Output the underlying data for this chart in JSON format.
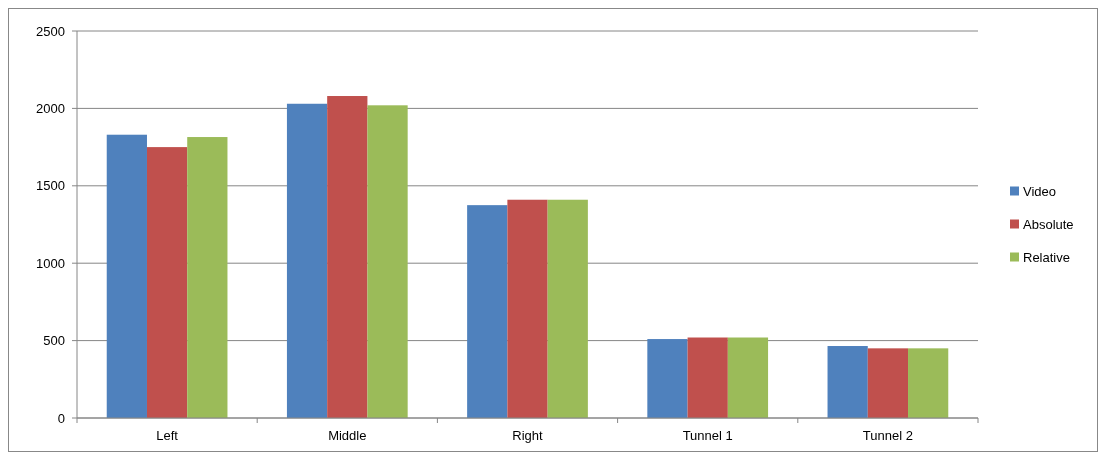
{
  "chart_data": {
    "type": "bar",
    "categories": [
      "Left",
      "Middle",
      "Right",
      "Tunnel 1",
      "Tunnel 2"
    ],
    "series": [
      {
        "name": "Video",
        "color": "#4f81bd",
        "values": [
          1830,
          2030,
          1375,
          510,
          465
        ]
      },
      {
        "name": "Absolute",
        "color": "#c0504d",
        "values": [
          1750,
          2080,
          1410,
          520,
          450
        ]
      },
      {
        "name": "Relative",
        "color": "#9bbb59",
        "values": [
          1815,
          2020,
          1410,
          520,
          450
        ]
      }
    ],
    "ylim": [
      0,
      2500
    ],
    "yticks": [
      0,
      500,
      1000,
      1500,
      2000,
      2500
    ],
    "grid": "y",
    "legend": "right"
  }
}
